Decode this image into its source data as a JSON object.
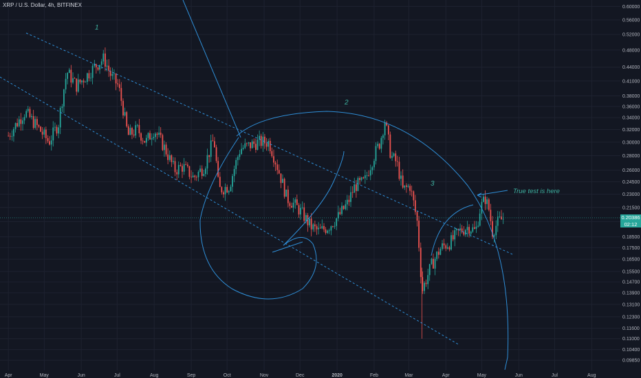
{
  "legend": {
    "symbol": "XRP / U.S. Dollar, 4h, BITFINEX"
  },
  "colors": {
    "background": "#131722",
    "up": "#26a69a",
    "down": "#ef5350",
    "drawing": "#2f8fd8",
    "annotation_text": "#3eb1a0",
    "axis_text": "#b2b5be"
  },
  "last_price": {
    "value": "0.20386",
    "countdown": "02:12"
  },
  "chart_data": {
    "type": "candlestick",
    "title": "XRP / U.S. Dollar, 4h, BITFINEX",
    "y_scale": "log",
    "ylim": [
      0.0935,
      0.62
    ],
    "y_ticks": [
      "0.60000",
      "0.56000",
      "0.52000",
      "0.48000",
      "0.44000",
      "0.41000",
      "0.38000",
      "0.36000",
      "0.34000",
      "0.32000",
      "0.30000",
      "0.28000",
      "0.26000",
      "0.24500",
      "0.23000",
      "0.21500",
      "0.20000",
      "0.18500",
      "0.17500",
      "0.16500",
      "0.15500",
      "0.14700",
      "0.13900",
      "0.13100",
      "0.12300",
      "0.11600",
      "0.11000",
      "0.10400",
      "0.09850"
    ],
    "x_ticks": [
      "Apr",
      "May",
      "Jun",
      "Jul",
      "Aug",
      "Sep",
      "Oct",
      "Nov",
      "Dec",
      "2020",
      "Feb",
      "Mar",
      "Apr",
      "May",
      "Jun",
      "Jul",
      "Aug"
    ],
    "x": [
      "2019-04-01",
      "2019-04-15",
      "2019-04-25",
      "2019-05-05",
      "2019-05-13",
      "2019-05-20",
      "2019-05-28",
      "2019-06-05",
      "2019-06-12",
      "2019-06-20",
      "2019-06-26",
      "2019-07-02",
      "2019-07-10",
      "2019-07-18",
      "2019-07-25",
      "2019-08-01",
      "2019-08-10",
      "2019-08-18",
      "2019-08-25",
      "2019-09-03",
      "2019-09-12",
      "2019-09-20",
      "2019-09-24",
      "2019-10-03",
      "2019-10-12",
      "2019-10-20",
      "2019-10-27",
      "2019-11-05",
      "2019-11-12",
      "2019-11-20",
      "2019-11-25",
      "2019-12-02",
      "2019-12-10",
      "2019-12-17",
      "2019-12-25",
      "2020-01-02",
      "2020-01-10",
      "2020-01-16",
      "2020-01-24",
      "2020-02-01",
      "2020-02-06",
      "2020-02-10",
      "2020-02-15",
      "2020-02-20",
      "2020-02-25",
      "2020-03-02",
      "2020-03-08",
      "2020-03-12",
      "2020-03-16",
      "2020-03-20",
      "2020-03-28",
      "2020-04-05",
      "2020-04-12",
      "2020-04-20",
      "2020-04-26",
      "2020-04-30",
      "2020-05-04",
      "2020-05-07",
      "2020-05-10",
      "2020-05-15",
      "2020-05-20"
    ],
    "close": [
      0.31,
      0.35,
      0.325,
      0.3,
      0.33,
      0.43,
      0.4,
      0.42,
      0.44,
      0.46,
      0.42,
      0.4,
      0.31,
      0.32,
      0.3,
      0.32,
      0.29,
      0.26,
      0.265,
      0.25,
      0.265,
      0.305,
      0.235,
      0.24,
      0.29,
      0.295,
      0.3,
      0.3,
      0.265,
      0.225,
      0.22,
      0.21,
      0.195,
      0.19,
      0.195,
      0.205,
      0.22,
      0.24,
      0.245,
      0.28,
      0.3,
      0.335,
      0.28,
      0.27,
      0.235,
      0.24,
      0.2,
      0.14,
      0.15,
      0.16,
      0.175,
      0.18,
      0.19,
      0.195,
      0.19,
      0.215,
      0.225,
      0.213,
      0.19,
      0.2,
      0.204
    ],
    "annotations": [
      "1",
      "2",
      "3",
      "True test is here"
    ]
  },
  "annotations": {
    "wave1": "1",
    "wave2": "2",
    "wave3": "3",
    "note": "True test is here"
  }
}
